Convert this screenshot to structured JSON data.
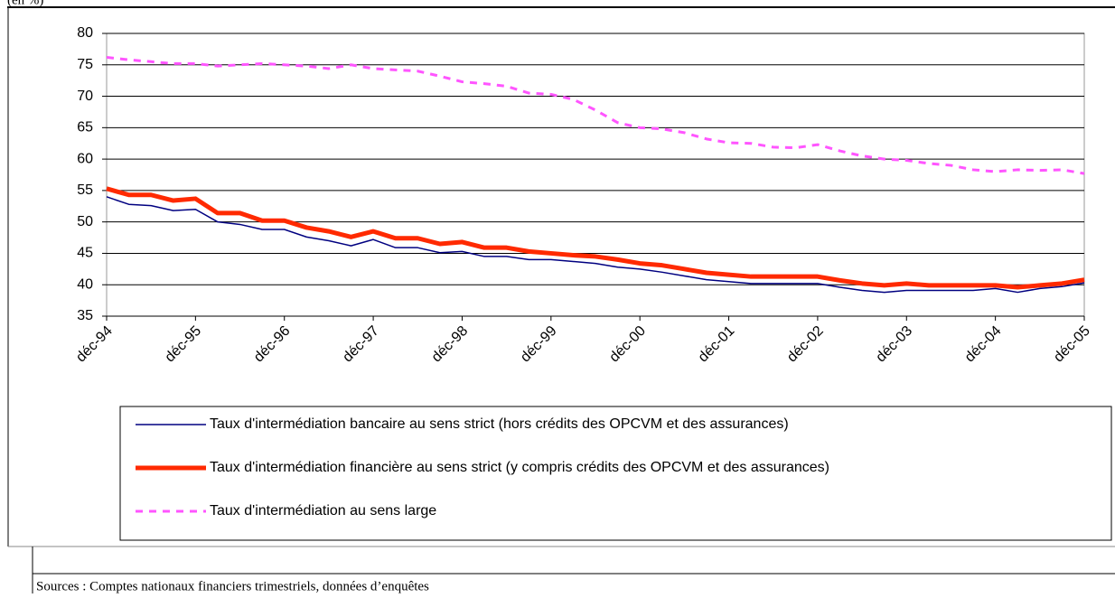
{
  "page_header": "(en %)",
  "source": "Sources : Comptes nationaux financiers trimestriels, données d’enquêtes",
  "chart_data": {
    "type": "line",
    "categories": [
      "déc-94",
      null,
      null,
      null,
      "déc-95",
      null,
      null,
      null,
      "déc-96",
      null,
      null,
      null,
      "déc-97",
      null,
      null,
      null,
      "déc-98",
      null,
      null,
      null,
      "déc-99",
      null,
      null,
      null,
      "déc-00",
      null,
      null,
      null,
      "déc-01",
      null,
      null,
      null,
      "déc-02",
      null,
      null,
      null,
      "déc-03",
      null,
      null,
      null,
      "déc-04",
      null,
      null,
      null,
      "déc-05"
    ],
    "series": [
      {
        "name": "Taux d'intermédiation bancaire au sens strict (hors crédits des OPCVM et des assurances)",
        "color": "#000080",
        "linewidth": 1.5,
        "dashed": false,
        "values": [
          54,
          52.8,
          52.6,
          51.8,
          52,
          50,
          49.6,
          48.8,
          48.8,
          47.6,
          47,
          46.2,
          47.2,
          45.9,
          45.9,
          45.1,
          45.3,
          44.5,
          44.5,
          44,
          44,
          43.7,
          43.4,
          42.8,
          42.5,
          42,
          41.4,
          40.8,
          40.5,
          40.2,
          40.2,
          40.2,
          40.2,
          39.6,
          39.1,
          38.8,
          39.1,
          39.1,
          39.1,
          39.1,
          39.4,
          38.8,
          39.4,
          39.7,
          40.3
        ]
      },
      {
        "name": "Taux d'intermédiation financière au sens strict (y compris crédits des OPCVM et des assurances)",
        "color": "#ff2a00",
        "linewidth": 5,
        "dashed": false,
        "values": [
          55.3,
          54.3,
          54.3,
          53.4,
          53.7,
          51.4,
          51.4,
          50.2,
          50.2,
          49.1,
          48.5,
          47.6,
          48.5,
          47.4,
          47.4,
          46.5,
          46.8,
          45.9,
          45.9,
          45.3,
          45,
          44.7,
          44.5,
          44,
          43.4,
          43.1,
          42.5,
          41.9,
          41.6,
          41.3,
          41.3,
          41.3,
          41.3,
          40.7,
          40.2,
          39.9,
          40.2,
          39.9,
          39.9,
          39.9,
          39.9,
          39.6,
          39.9,
          40.2,
          40.8
        ]
      },
      {
        "name": "Taux d'intermédiation au sens large",
        "color": "#ff55ff",
        "linewidth": 3,
        "dashed": true,
        "values": [
          76.2,
          75.8,
          75.5,
          75.2,
          75.2,
          74.8,
          75,
          75.2,
          75,
          74.8,
          74.4,
          75,
          74.4,
          74.2,
          74,
          73.2,
          72.3,
          72,
          71.6,
          70.5,
          70.3,
          69.5,
          67.8,
          65.8,
          65,
          64.8,
          64.2,
          63.2,
          62.6,
          62.5,
          61.9,
          61.8,
          62.3,
          61.3,
          60.5,
          60,
          59.8,
          59.3,
          59,
          58.3,
          58,
          58.3,
          58.2,
          58.3,
          57.7
        ]
      }
    ],
    "ylim": [
      35,
      80
    ],
    "yticks": [
      35,
      40,
      45,
      50,
      55,
      60,
      65,
      70,
      75,
      80
    ],
    "grid": true
  }
}
